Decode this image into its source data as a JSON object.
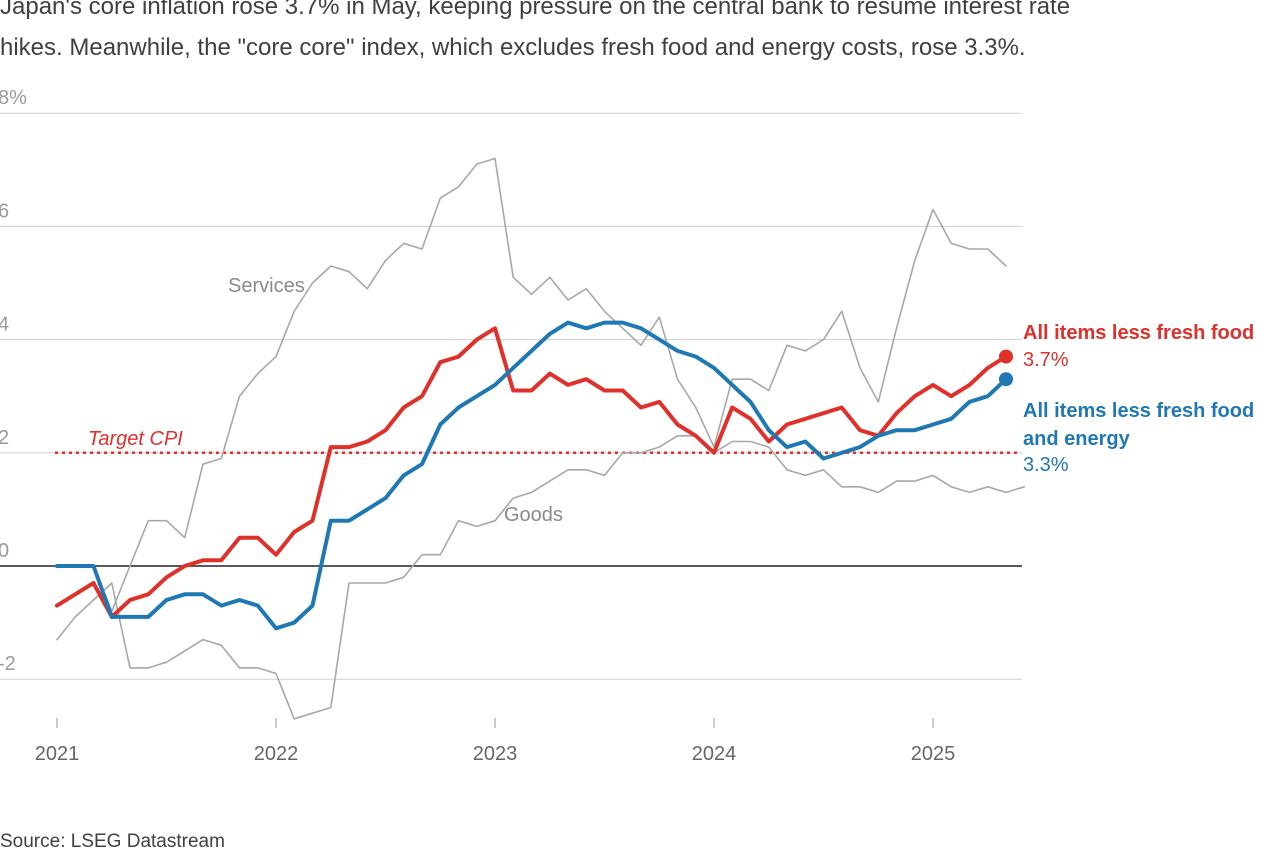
{
  "subtitle_lines": [
    "Japan's core inflation rose 3.7% in May, keeping pressure on the central bank to resume interest rate",
    "hikes. Meanwhile, the \"core core\" index, which excludes fresh food and energy costs, rose 3.3%."
  ],
  "source": "Source: LSEG Datastream",
  "chart_data": {
    "type": "line",
    "ylim": [
      -2.5,
      8
    ],
    "y_ticks": [
      -2,
      0,
      2,
      4,
      6,
      8
    ],
    "y_tick_labels": [
      "-2",
      "0",
      "2",
      "4",
      "6",
      "8%"
    ],
    "x_ticks": [
      2021,
      2022,
      2023,
      2024,
      2025
    ],
    "x_tick_labels": [
      "2021",
      "2022",
      "2023",
      "2024",
      "2025"
    ],
    "xlim": [
      2020.92,
      2025.45
    ],
    "grid": true,
    "reference_lines": [
      {
        "label": "Target CPI",
        "value": 2,
        "color": "#e0302a"
      }
    ],
    "series": [
      {
        "name": "Goods",
        "label": "Goods",
        "color": "#a8a8a8",
        "start": 2021.0,
        "step_months": 1,
        "values": [
          -1.3,
          -0.9,
          -0.6,
          -0.3,
          -1.8,
          -1.8,
          -1.7,
          -1.5,
          -1.3,
          -1.4,
          -1.8,
          -1.8,
          -1.9,
          -2.7,
          -2.6,
          -2.5,
          -0.3,
          -0.3,
          -0.3,
          -0.2,
          0.2,
          0.2,
          0.8,
          0.7,
          0.8,
          1.2,
          1.3,
          1.5,
          1.7,
          1.7,
          1.6,
          2.0,
          2.0,
          2.1,
          2.3,
          2.3,
          2.0,
          2.2,
          2.2,
          2.1,
          1.7,
          1.6,
          1.7,
          1.4,
          1.4,
          1.3,
          1.5,
          1.5,
          1.6,
          1.4,
          1.3,
          1.4,
          1.3,
          1.4
        ]
      },
      {
        "name": "Services",
        "label": "Services",
        "color": "#a8a8a8",
        "start": 2021.0,
        "step_months": 1,
        "values": [
          0.0,
          0.0,
          0.0,
          -0.8,
          0.0,
          0.8,
          0.8,
          0.5,
          1.8,
          1.9,
          3.0,
          3.4,
          3.7,
          4.5,
          5.0,
          5.3,
          5.2,
          4.9,
          5.4,
          5.7,
          5.6,
          6.5,
          6.7,
          7.1,
          7.2,
          5.1,
          4.8,
          5.1,
          4.7,
          4.9,
          4.5,
          4.2,
          3.9,
          4.4,
          3.3,
          2.8,
          2.1,
          3.3,
          3.3,
          3.1,
          3.9,
          3.8,
          4.0,
          4.5,
          3.5,
          2.9,
          4.2,
          5.4,
          6.3,
          5.7,
          5.6,
          5.6,
          5.3
        ]
      },
      {
        "name": "All items less fresh food",
        "label": "All items less fresh food",
        "end_label": "3.7%",
        "color": "#e0302a",
        "start": 2021.0,
        "step_months": 1,
        "values": [
          -0.7,
          -0.5,
          -0.3,
          -0.9,
          -0.6,
          -0.5,
          -0.2,
          0.0,
          0.1,
          0.1,
          0.5,
          0.5,
          0.2,
          0.6,
          0.8,
          2.1,
          2.1,
          2.2,
          2.4,
          2.8,
          3.0,
          3.6,
          3.7,
          4.0,
          4.2,
          3.1,
          3.1,
          3.4,
          3.2,
          3.3,
          3.1,
          3.1,
          2.8,
          2.9,
          2.5,
          2.3,
          2.0,
          2.8,
          2.6,
          2.2,
          2.5,
          2.6,
          2.7,
          2.8,
          2.4,
          2.3,
          2.7,
          3.0,
          3.2,
          3.0,
          3.2,
          3.5,
          3.7
        ]
      },
      {
        "name": "All items less fresh food and energy",
        "label": [
          "All items less fresh food",
          "and energy"
        ],
        "end_label": "3.3%",
        "color": "#1f78b4",
        "start": 2021.0,
        "step_months": 1,
        "values": [
          0.0,
          0.0,
          0.0,
          -0.9,
          -0.9,
          -0.9,
          -0.6,
          -0.5,
          -0.5,
          -0.7,
          -0.6,
          -0.7,
          -1.1,
          -1.0,
          -0.7,
          0.8,
          0.8,
          1.0,
          1.2,
          1.6,
          1.8,
          2.5,
          2.8,
          3.0,
          3.2,
          3.5,
          3.8,
          4.1,
          4.3,
          4.2,
          4.3,
          4.3,
          4.2,
          4.0,
          3.8,
          3.7,
          3.5,
          3.2,
          2.9,
          2.4,
          2.1,
          2.2,
          1.9,
          2.0,
          2.1,
          2.3,
          2.4,
          2.4,
          2.5,
          2.6,
          2.9,
          3.0,
          3.3
        ]
      }
    ]
  }
}
